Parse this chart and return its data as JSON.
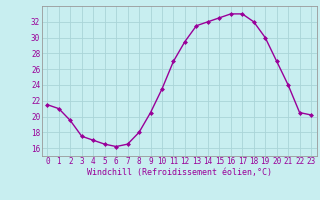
{
  "x": [
    0,
    1,
    2,
    3,
    4,
    5,
    6,
    7,
    8,
    9,
    10,
    11,
    12,
    13,
    14,
    15,
    16,
    17,
    18,
    19,
    20,
    21,
    22,
    23
  ],
  "y": [
    21.5,
    21.0,
    19.5,
    17.5,
    17.0,
    16.5,
    16.2,
    16.5,
    18.0,
    20.5,
    23.5,
    27.0,
    29.5,
    31.5,
    32.0,
    32.5,
    33.0,
    33.0,
    32.0,
    30.0,
    27.0,
    24.0,
    20.5,
    20.2
  ],
  "line_color": "#990099",
  "marker": "D",
  "marker_size": 2.0,
  "bg_color": "#c8eef0",
  "grid_color": "#aad4d8",
  "xlabel": "Windchill (Refroidissement éolien,°C)",
  "xlabel_color": "#990099",
  "tick_color": "#990099",
  "ylim": [
    15,
    34
  ],
  "xlim": [
    -0.5,
    23.5
  ],
  "yticks": [
    16,
    18,
    20,
    22,
    24,
    26,
    28,
    30,
    32
  ],
  "xticks": [
    0,
    1,
    2,
    3,
    4,
    5,
    6,
    7,
    8,
    9,
    10,
    11,
    12,
    13,
    14,
    15,
    16,
    17,
    18,
    19,
    20,
    21,
    22,
    23
  ],
  "tick_fontsize": 5.5,
  "xlabel_fontsize": 6.0,
  "linewidth": 1.0
}
